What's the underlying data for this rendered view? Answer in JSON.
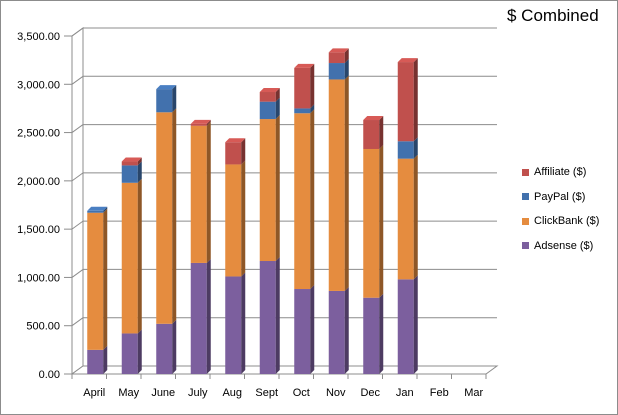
{
  "chart_data": {
    "type": "bar",
    "stacked": true,
    "style": "3d-column",
    "title": "$ Combined",
    "xlabel": "",
    "ylabel": "",
    "categories": [
      "April",
      "May",
      "June",
      "July",
      "Aug",
      "Sept",
      "Oct",
      "Nov",
      "Dec",
      "Jan",
      "Feb",
      "Mar"
    ],
    "ylim": [
      0,
      3500
    ],
    "yticks": [
      "0.00",
      "500.00",
      "1,000.00",
      "1,500.00",
      "2,000.00",
      "2,500.00",
      "3,000.00",
      "3,500.00"
    ],
    "grid": true,
    "legend_position": "right",
    "series": [
      {
        "name": "Adsense ($)",
        "color": "#7c5f9e",
        "values": [
          250,
          420,
          520,
          1150,
          1010,
          1170,
          880,
          860,
          790,
          980,
          null,
          null
        ]
      },
      {
        "name": "ClickBank ($)",
        "color": "#e58c3f",
        "values": [
          1420,
          1560,
          2190,
          1420,
          1160,
          1470,
          1820,
          2190,
          1540,
          1250,
          null,
          null
        ]
      },
      {
        "name": "PayPal ($)",
        "color": "#4271ad",
        "values": [
          20,
          180,
          240,
          0,
          0,
          180,
          50,
          170,
          0,
          180,
          null,
          null
        ]
      },
      {
        "name": "Affiliate ($)",
        "color": "#c0504d",
        "values": [
          0,
          40,
          0,
          20,
          230,
          100,
          420,
          110,
          300,
          820,
          null,
          null
        ]
      }
    ]
  }
}
